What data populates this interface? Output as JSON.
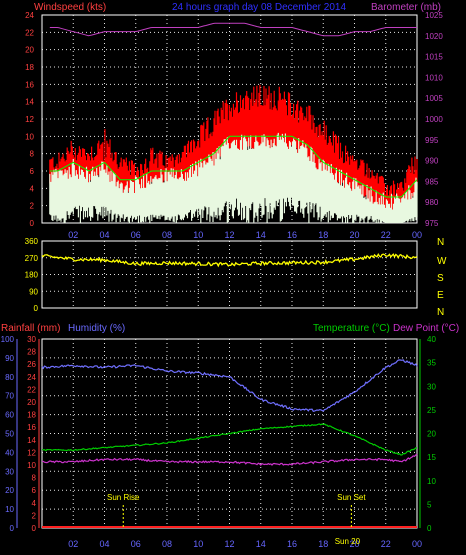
{
  "colors": {
    "background": "#000000",
    "frame": "#ffffff",
    "grid": "#ffffff",
    "wind_gust": "#ff0000",
    "wind_avg": "#00ff00",
    "wind_fill": "#e8f8e0",
    "baro": "#c040c0",
    "direction": "#ffff00",
    "humidity": "#7070ff",
    "temperature": "#00cc00",
    "dewpoint": "#cc33cc",
    "rainfall": "#ff2020",
    "axis_blue": "#6a6aff",
    "axis_green": "#00cc00",
    "axis_magenta": "#cc33cc",
    "axis_red": "#ff4040",
    "axis_yellow": "#ffff00",
    "sun_label": "#ffff00",
    "time_label": "#6666ff",
    "title_blue": "#3030ff"
  },
  "header": {
    "wind_label": "Windspeed (kts)",
    "title": "24 hours graph day  08 December 2014",
    "baro_label": "Barometer (mb)"
  },
  "time_ticks": [
    "02",
    "04",
    "06",
    "08",
    "10",
    "12",
    "14",
    "16",
    "18",
    "20",
    "22",
    "00"
  ],
  "chart_data": [
    {
      "type": "line",
      "panel": "wind",
      "series_names": [
        "Windspeed",
        "Gust"
      ],
      "ylabel_left": "Windspeed (kts)",
      "ylabel_right": "Barometer (mb)",
      "ylim_left": [
        0,
        24
      ],
      "ylim_right": [
        975,
        1025
      ],
      "left_ticks": [
        0,
        2,
        4,
        6,
        8,
        10,
        12,
        14,
        16,
        18,
        20,
        22,
        24
      ],
      "right_ticks": [
        975,
        980,
        985,
        990,
        995,
        1000,
        1005,
        1010,
        1015,
        1020,
        1025
      ],
      "x_hours": [
        1,
        2,
        3,
        4,
        5,
        6,
        7,
        8,
        9,
        10,
        11,
        12,
        13,
        14,
        15,
        16,
        17,
        18,
        19,
        20,
        21,
        22,
        23,
        24
      ],
      "gust_max": [
        8,
        10,
        9,
        11,
        8,
        7,
        9,
        8,
        9,
        11,
        13,
        15,
        16,
        16,
        16,
        15,
        14,
        12,
        10,
        8,
        7,
        5,
        5,
        9
      ],
      "gust_avg": [
        6,
        7,
        7,
        7,
        6,
        5,
        6,
        6,
        7,
        8,
        10,
        12,
        13,
        13,
        13,
        12,
        11,
        9,
        7,
        6,
        5,
        3,
        3,
        6
      ],
      "wind_avg": [
        5,
        6,
        5,
        6,
        4,
        4,
        5,
        5,
        5,
        6,
        7,
        9,
        9,
        9,
        9,
        9,
        8,
        6,
        5,
        4,
        3,
        2,
        2,
        4
      ],
      "wind_min": [
        1,
        2,
        2,
        2,
        1,
        1,
        1,
        1,
        1,
        2,
        2,
        3,
        3,
        3,
        3,
        3,
        3,
        2,
        1,
        1,
        1,
        0,
        0,
        1
      ],
      "barometer": [
        1022,
        1021,
        1020,
        1021,
        1021,
        1021,
        1022,
        1022,
        1022,
        1022,
        1023,
        1023,
        1023,
        1022,
        1022,
        1022,
        1021,
        1020,
        1020,
        1021,
        1021,
        1022,
        1022,
        1022
      ]
    },
    {
      "type": "line",
      "panel": "direction",
      "ylim": [
        0,
        360
      ],
      "left_ticks": [
        0,
        90,
        180,
        270,
        360
      ],
      "compass_labels": [
        "N",
        "W",
        "S",
        "E",
        "N"
      ],
      "x_hours": [
        0,
        2,
        4,
        6,
        8,
        10,
        12,
        14,
        16,
        18,
        20,
        22,
        24
      ],
      "direction_deg": [
        280,
        262,
        258,
        238,
        242,
        238,
        233,
        240,
        243,
        246,
        262,
        286,
        270
      ]
    },
    {
      "type": "line",
      "panel": "climate",
      "rain_label": "Rainfall (mm)",
      "humidity_label": "Humidity (%)",
      "temp_label": "Temperature (°C)",
      "dew_label": "Dew Point (°C)",
      "humidity_ticks": [
        0,
        10,
        20,
        30,
        40,
        50,
        60,
        70,
        80,
        90,
        100
      ],
      "rain_ticks": [
        0,
        2,
        4,
        6,
        8,
        10,
        12,
        14,
        16,
        18,
        20,
        22,
        24,
        26,
        28,
        30
      ],
      "temp_ticks": [
        0,
        5,
        10,
        15,
        20,
        25,
        30,
        35,
        40
      ],
      "ylim_humidity": [
        0,
        100
      ],
      "ylim_temp": [
        0,
        40
      ],
      "x_hours": [
        0,
        2,
        4,
        6,
        8,
        10,
        12,
        14,
        16,
        18,
        20,
        22,
        23,
        24
      ],
      "humidity": [
        85,
        86,
        85,
        86,
        83,
        82,
        80,
        68,
        63,
        62,
        72,
        85,
        89,
        86
      ],
      "temperature": [
        16.5,
        16.5,
        17.0,
        17.5,
        18.0,
        19.0,
        20.0,
        21.0,
        21.5,
        22.0,
        19.5,
        16.5,
        15.5,
        17.0
      ],
      "dewpoint": [
        14,
        14,
        14.5,
        14.5,
        14,
        14,
        14,
        13.5,
        13.5,
        14,
        14.5,
        14.5,
        14,
        15.5
      ],
      "rainfall": [
        0,
        0,
        0,
        0,
        0,
        0,
        0,
        0,
        0,
        0,
        0,
        0,
        0,
        0
      ],
      "sun_rise": "Sun Rise",
      "sun_set": "Sun Set",
      "sun_rise_hour": 5.2,
      "sun_set_hour": 19.8,
      "bottom_extra_label": "Sun 20"
    }
  ]
}
